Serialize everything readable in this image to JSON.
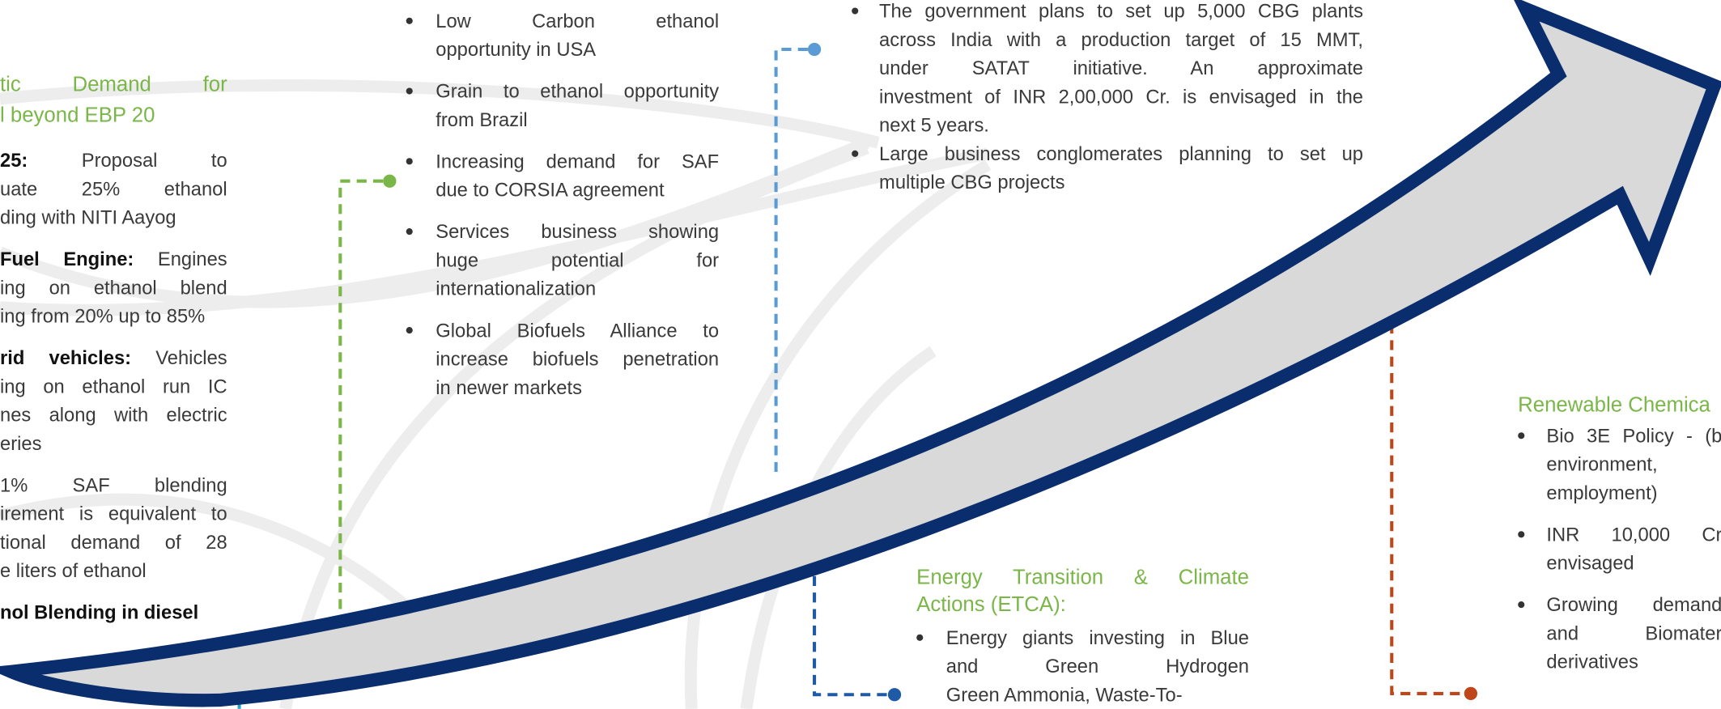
{
  "left_panel": {
    "heading": [
      "tic Demand for",
      "l beyond EBP 20"
    ],
    "items": [
      {
        "bold": "25:",
        "lines": [
          "Proposal to",
          "uate 25% ethanol",
          "ding with NITI Aayog"
        ]
      },
      {
        "bold": "Fuel Engine:",
        "lines": [
          "Engines",
          "ing on ethanol blend",
          "ing from 20% up to 85%"
        ]
      },
      {
        "bold": "rid vehicles:",
        "lines": [
          "Vehicles",
          "ing on ethanol run IC",
          "nes along with electric",
          "eries"
        ]
      },
      {
        "lines": [
          "1% SAF blending",
          "irement is equivalent to",
          "tional demand of 28",
          "e liters of ethanol"
        ]
      },
      {
        "bold": "nol Blending in diesel",
        "lines": []
      }
    ]
  },
  "market_column": {
    "items": [
      {
        "lines": [
          "Low Carbon ethanol",
          "opportunity in USA"
        ]
      },
      {
        "lines": [
          "Grain to ethanol opportunity",
          "from Brazil"
        ]
      },
      {
        "lines": [
          "Increasing demand for SAF",
          "due to CORSIA agreement"
        ]
      },
      {
        "lines": [
          "Services business showing",
          "huge potential for",
          "internationalization"
        ]
      },
      {
        "lines": [
          "Global Biofuels Alliance to",
          "increase biofuels penetration",
          "in newer markets"
        ]
      }
    ]
  },
  "cbg_column": {
    "items": [
      {
        "lines": [
          "The government plans to set up 5,000 CBG plants",
          "across India with a production target of 15 MMT,",
          "under SATAT initiative. An approximate",
          "investment of INR 2,00,000 Cr. is envisaged in the",
          "next 5 years."
        ]
      },
      {
        "lines": [
          "Large business conglomerates planning to set up",
          "multiple CBG projects"
        ]
      }
    ]
  },
  "etca": {
    "heading": [
      "Energy Transition & Climate",
      "Actions (ETCA):"
    ],
    "items": [
      {
        "lines": [
          "Energy giants investing in Blue",
          "and Green Hydrogen",
          "Green Ammonia, Waste-To-"
        ]
      }
    ]
  },
  "renewable_chemicals": {
    "heading": [
      "Renewable Chemica"
    ],
    "items": [
      {
        "lines": [
          "Bio 3E Policy - (b",
          "environment,",
          "employment)"
        ]
      },
      {
        "lines": [
          "INR 10,000 Cr",
          "envisaged"
        ]
      },
      {
        "lines": [
          "Growing demand",
          "and Biomater",
          "derivatives"
        ]
      }
    ]
  }
}
